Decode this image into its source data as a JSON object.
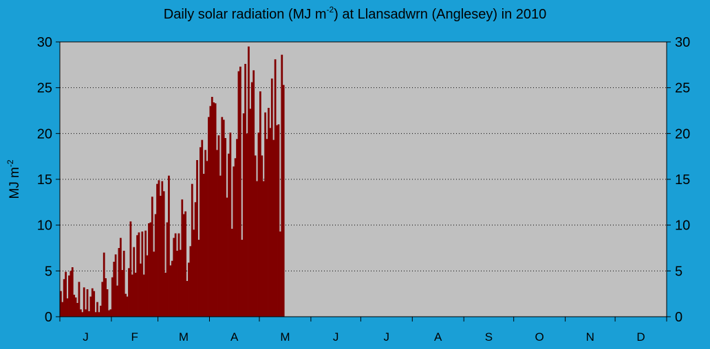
{
  "chart_data": {
    "type": "bar",
    "title": "Daily solar radiation (MJ m-2) at Llansadwrn (Anglesey) in 2010",
    "title_parts": {
      "main": "Daily solar radiation (MJ m",
      "sup": "-2",
      "tail": ") at Llansadwrn (Anglesey) in 2010"
    },
    "ylabel": {
      "main": "MJ m",
      "sup": "-2"
    },
    "ylim": [
      0,
      30
    ],
    "yticks": [
      "0",
      "5",
      "10",
      "15",
      "20",
      "25",
      "30"
    ],
    "year_days": 365,
    "month_labels": [
      "J",
      "F",
      "M",
      "A",
      "M",
      "J",
      "J",
      "A",
      "S",
      "O",
      "N",
      "D"
    ],
    "month_days": [
      31,
      28,
      31,
      30,
      31,
      30,
      31,
      31,
      30,
      31,
      30,
      31
    ],
    "grid": "horizontal dotted",
    "colors": {
      "bar": "#800000",
      "plot_bg": "#c0c0c0",
      "page_bg": "#1a9fd6"
    },
    "series": [
      {
        "values": [
          2.8,
          1.6,
          4.1,
          4.9,
          2.0,
          4.5,
          5.0,
          5.4,
          2.4,
          2.1,
          1.5,
          3.8,
          0.8,
          0.5,
          3.2,
          0.8,
          3.0,
          0.6,
          2.2,
          3.1,
          2.8,
          0.5,
          1.6,
          0.5,
          1.2,
          3.8,
          7.0,
          4.2,
          3.0,
          0.7,
          0.8,
          4.3,
          6.0,
          6.8,
          3.4,
          7.5,
          8.6,
          5.1,
          7.2,
          2.5,
          2.2,
          5.3,
          10.4,
          4.6,
          7.6,
          4.8,
          8.9,
          9.2,
          5.8,
          9.3,
          4.6,
          9.4,
          6.7,
          10.2,
          10.3,
          13.1,
          7.1,
          11.2,
          14.5,
          14.9,
          13.2,
          14.8,
          13.7,
          4.8,
          10.3,
          15.4,
          5.6,
          6.1,
          8.6,
          9.1,
          7.2,
          9.1,
          7.3,
          12.8,
          11.2,
          11.5,
          3.9,
          5.9,
          7.7,
          14.5,
          9.5,
          12.5,
          17.1,
          8.4,
          18.5,
          19.3,
          15.6,
          18.2,
          17.0,
          21.8,
          23.0,
          24.0,
          23.4,
          23.3,
          18.2,
          19.8,
          15.4,
          21.8,
          21.5,
          19.5,
          13.0,
          17.8,
          20.1,
          9.6,
          16.4,
          17.3,
          19.4,
          26.8,
          27.3,
          8.4,
          22.2,
          27.6,
          20.0,
          29.5,
          22.7,
          25.6,
          26.9,
          17.6,
          14.8,
          20.1,
          24.6,
          17.6,
          14.8,
          22.3,
          19.4,
          22.8,
          20.6,
          26.0,
          19.3,
          28.1,
          20.9,
          21.0,
          9.3,
          28.6,
          25.3
        ]
      }
    ]
  }
}
